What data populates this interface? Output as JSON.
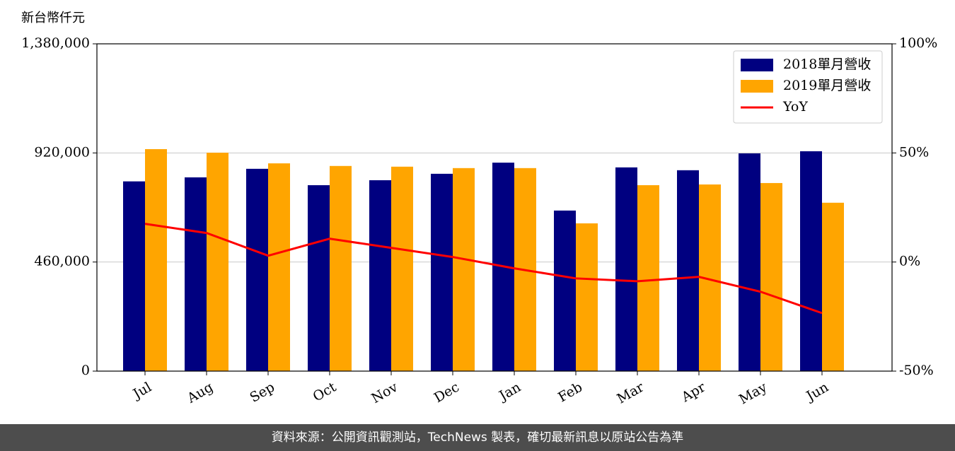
{
  "chart_data": {
    "type": "bar_line",
    "y_label": "新台幣仟元",
    "categories": [
      "Jul",
      "Aug",
      "Sep",
      "Oct",
      "Nov",
      "Dec",
      "Jan",
      "Feb",
      "Mar",
      "Apr",
      "May",
      "Jun"
    ],
    "series": [
      {
        "name": "2018單月營收",
        "type": "bar",
        "color": "#000080",
        "values": [
          800000,
          817000,
          853000,
          784000,
          805000,
          832000,
          879000,
          677000,
          859000,
          847000,
          918000,
          927000
        ]
      },
      {
        "name": "2019單月營收",
        "type": "bar",
        "color": "#ffa500",
        "values": [
          936000,
          921000,
          876000,
          865000,
          862000,
          856000,
          856000,
          623000,
          784000,
          787000,
          793000,
          710000
        ]
      },
      {
        "name": "YoY",
        "type": "line",
        "axis": "y2",
        "color": "#ff0000",
        "values": [
          17.5,
          13.3,
          2.9,
          10.7,
          6.5,
          2.3,
          -2.9,
          -7.5,
          -8.8,
          -6.8,
          -13.6,
          -23.4
        ]
      }
    ],
    "ylim": [
      0,
      1380000
    ],
    "yticks": [
      {
        "value": 0,
        "label": "0"
      },
      {
        "value": 460000,
        "label": "460,000"
      },
      {
        "value": 920000,
        "label": "920,000"
      },
      {
        "value": 1380000,
        "label": "1,380,000"
      }
    ],
    "y2lim": [
      -50,
      100
    ],
    "y2ticks": [
      {
        "value": -50,
        "label": "-50%"
      },
      {
        "value": 0,
        "label": "0%"
      },
      {
        "value": 50,
        "label": "50%"
      },
      {
        "value": 100,
        "label": "100%"
      }
    ],
    "grid": true,
    "legend": "upper right",
    "footer": "資料來源：公開資訊觀測站，TechNews 製表，確切最新訊息以原站公告為準"
  }
}
